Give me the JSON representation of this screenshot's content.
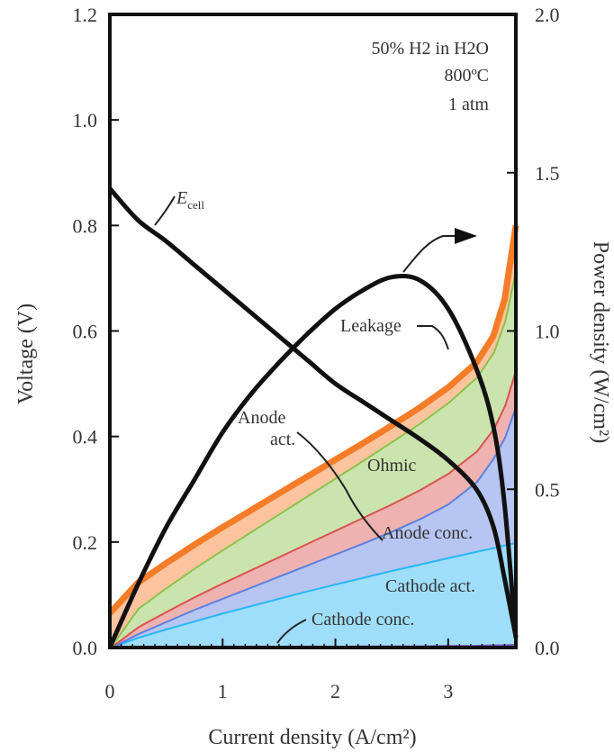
{
  "chart_data": {
    "type": "area",
    "xlabel": "Current density (A/cm²)",
    "ylabel_left": "Voltage (V)",
    "ylabel_right": "Power density (W/cm²)",
    "xlim": [
      0,
      3.6
    ],
    "ylim_left": [
      0,
      1.2
    ],
    "ylim_right": [
      0,
      2.0
    ],
    "x_ticks": [
      "0",
      "1",
      "2",
      "3"
    ],
    "y_left_ticks": [
      "0.0",
      "0.2",
      "0.4",
      "0.6",
      "0.8",
      "1.0",
      "1.2"
    ],
    "y_right_ticks": [
      "0.0",
      "0.5",
      "1.0",
      "1.5",
      "2.0"
    ],
    "conditions": [
      "50% H2 in H2O",
      "800ºC",
      "1 atm"
    ],
    "x": [
      0,
      0.25,
      0.5,
      0.75,
      1.0,
      1.25,
      1.5,
      1.75,
      2.0,
      2.25,
      2.5,
      2.75,
      3.0,
      3.25,
      3.4,
      3.5,
      3.6
    ],
    "loss_series": [
      {
        "name": "Cathode conc.",
        "color": "#7e57c2",
        "values": [
          0,
          0.001,
          0.001,
          0.002,
          0.002,
          0.002,
          0.003,
          0.003,
          0.003,
          0.004,
          0.004,
          0.004,
          0.005,
          0.005,
          0.006,
          0.006,
          0.007
        ]
      },
      {
        "name": "Cathode act.",
        "color": "#29b6f6",
        "values": [
          0,
          0.02,
          0.036,
          0.051,
          0.066,
          0.08,
          0.094,
          0.108,
          0.121,
          0.134,
          0.147,
          0.159,
          0.171,
          0.183,
          0.19,
          0.195,
          0.2
        ]
      },
      {
        "name": "Anode conc.",
        "color": "#5c7fe0",
        "values": [
          0,
          0.027,
          0.05,
          0.073,
          0.094,
          0.115,
          0.136,
          0.157,
          0.178,
          0.199,
          0.221,
          0.245,
          0.273,
          0.315,
          0.36,
          0.4,
          0.46
        ]
      },
      {
        "name": "Anode act.",
        "color": "#d9534f",
        "values": [
          0,
          0.04,
          0.069,
          0.097,
          0.123,
          0.148,
          0.173,
          0.198,
          0.223,
          0.248,
          0.273,
          0.3,
          0.331,
          0.373,
          0.415,
          0.46,
          0.53
        ]
      },
      {
        "name": "Ohmic",
        "color": "#8bc34a",
        "values": [
          0,
          0.075,
          0.114,
          0.151,
          0.186,
          0.22,
          0.254,
          0.288,
          0.322,
          0.356,
          0.391,
          0.426,
          0.465,
          0.513,
          0.56,
          0.62,
          0.72
        ]
      },
      {
        "name": "Leakage",
        "color": "#f57c28",
        "values": [
          0.065,
          0.123,
          0.16,
          0.195,
          0.228,
          0.26,
          0.292,
          0.324,
          0.356,
          0.388,
          0.421,
          0.455,
          0.493,
          0.54,
          0.59,
          0.66,
          0.8
        ]
      }
    ],
    "cell_voltage": {
      "label": "E",
      "label_sub": "cell",
      "values": [
        0.87,
        0.81,
        0.77,
        0.725,
        0.68,
        0.635,
        0.59,
        0.545,
        0.5,
        0.465,
        0.43,
        0.395,
        0.355,
        0.3,
        0.23,
        0.13,
        0.02
      ]
    },
    "power_density": {
      "values": [
        0,
        0.2,
        0.38,
        0.53,
        0.68,
        0.8,
        0.9,
        0.99,
        1.07,
        1.13,
        1.17,
        1.16,
        1.07,
        0.88,
        0.7,
        0.45,
        0.03
      ]
    }
  }
}
